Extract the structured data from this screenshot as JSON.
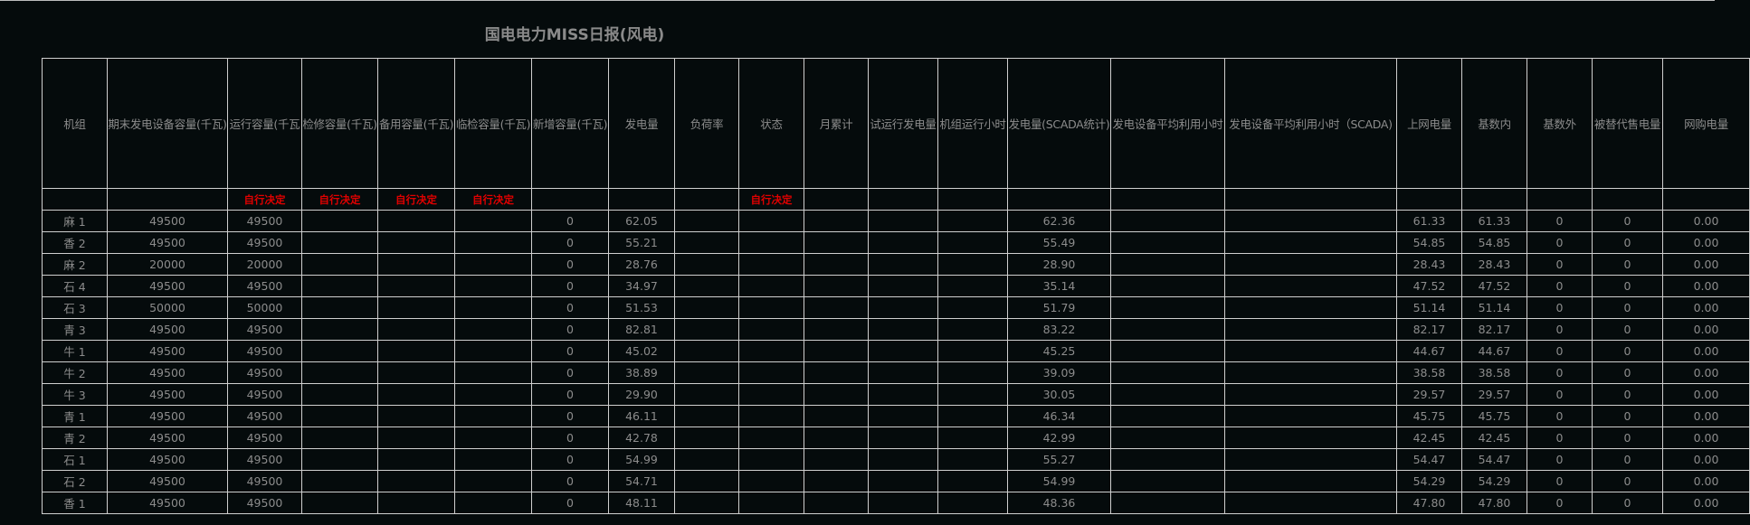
{
  "title": "国电电力MISS日报(风电)",
  "colors": {
    "background": "#050b0c",
    "text": "#8c8c8c",
    "grid": "#cfcfcf",
    "accent_red": "#e00000"
  },
  "table": {
    "columns": [
      "机组",
      "期末发电设备容量(千瓦)",
      "运行容量(千瓦",
      "检修容量(千瓦)",
      "备用容量(千瓦)",
      "临检容量(千瓦)",
      "新增容量(千瓦)",
      "发电量",
      "负荷率",
      "状态",
      "月累计",
      "试运行发电量",
      "机组运行小时",
      "发电量(SCADA统计)",
      "发电设备平均利用小时",
      "发电设备平均利用小时（SCADA)",
      "上网电量",
      "基数内",
      "基数外",
      "被替代售电量",
      "网购电量"
    ],
    "sub_header": [
      "",
      "",
      "自行决定",
      "自行决定",
      "自行决定",
      "自行决定",
      "",
      "",
      "",
      "自行决定",
      "",
      "",
      "",
      "",
      "",
      "",
      "",
      "",
      "",
      "",
      ""
    ],
    "rows": [
      [
        "麻 1",
        "49500",
        "49500",
        "",
        "",
        "",
        "0",
        "62.05",
        "",
        "",
        "",
        "",
        "",
        "62.36",
        "",
        "",
        "61.33",
        "61.33",
        "0",
        "0",
        "0.00"
      ],
      [
        "香 2",
        "49500",
        "49500",
        "",
        "",
        "",
        "0",
        "55.21",
        "",
        "",
        "",
        "",
        "",
        "55.49",
        "",
        "",
        "54.85",
        "54.85",
        "0",
        "0",
        "0.00"
      ],
      [
        "麻 2",
        "20000",
        "20000",
        "",
        "",
        "",
        "0",
        "28.76",
        "",
        "",
        "",
        "",
        "",
        "28.90",
        "",
        "",
        "28.43",
        "28.43",
        "0",
        "0",
        "0.00"
      ],
      [
        "石 4",
        "49500",
        "49500",
        "",
        "",
        "",
        "0",
        "34.97",
        "",
        "",
        "",
        "",
        "",
        "35.14",
        "",
        "",
        "47.52",
        "47.52",
        "0",
        "0",
        "0.00"
      ],
      [
        "石 3",
        "50000",
        "50000",
        "",
        "",
        "",
        "0",
        "51.53",
        "",
        "",
        "",
        "",
        "",
        "51.79",
        "",
        "",
        "51.14",
        "51.14",
        "0",
        "0",
        "0.00"
      ],
      [
        "青 3",
        "49500",
        "49500",
        "",
        "",
        "",
        "0",
        "82.81",
        "",
        "",
        "",
        "",
        "",
        "83.22",
        "",
        "",
        "82.17",
        "82.17",
        "0",
        "0",
        "0.00"
      ],
      [
        "牛 1",
        "49500",
        "49500",
        "",
        "",
        "",
        "0",
        "45.02",
        "",
        "",
        "",
        "",
        "",
        "45.25",
        "",
        "",
        "44.67",
        "44.67",
        "0",
        "0",
        "0.00"
      ],
      [
        "牛 2",
        "49500",
        "49500",
        "",
        "",
        "",
        "0",
        "38.89",
        "",
        "",
        "",
        "",
        "",
        "39.09",
        "",
        "",
        "38.58",
        "38.58",
        "0",
        "0",
        "0.00"
      ],
      [
        "牛 3",
        "49500",
        "49500",
        "",
        "",
        "",
        "0",
        "29.90",
        "",
        "",
        "",
        "",
        "",
        "30.05",
        "",
        "",
        "29.57",
        "29.57",
        "0",
        "0",
        "0.00"
      ],
      [
        "青 1",
        "49500",
        "49500",
        "",
        "",
        "",
        "0",
        "46.11",
        "",
        "",
        "",
        "",
        "",
        "46.34",
        "",
        "",
        "45.75",
        "45.75",
        "0",
        "0",
        "0.00"
      ],
      [
        "青 2",
        "49500",
        "49500",
        "",
        "",
        "",
        "0",
        "42.78",
        "",
        "",
        "",
        "",
        "",
        "42.99",
        "",
        "",
        "42.45",
        "42.45",
        "0",
        "0",
        "0.00"
      ],
      [
        "石 1",
        "49500",
        "49500",
        "",
        "",
        "",
        "0",
        "54.99",
        "",
        "",
        "",
        "",
        "",
        "55.27",
        "",
        "",
        "54.47",
        "54.47",
        "0",
        "0",
        "0.00"
      ],
      [
        "石 2",
        "49500",
        "49500",
        "",
        "",
        "",
        "0",
        "54.71",
        "",
        "",
        "",
        "",
        "",
        "54.99",
        "",
        "",
        "54.29",
        "54.29",
        "0",
        "0",
        "0.00"
      ],
      [
        "香 1",
        "49500",
        "49500",
        "",
        "",
        "",
        "0",
        "48.11",
        "",
        "",
        "",
        "",
        "",
        "48.36",
        "",
        "",
        "47.80",
        "47.80",
        "0",
        "0",
        "0.00"
      ]
    ]
  }
}
